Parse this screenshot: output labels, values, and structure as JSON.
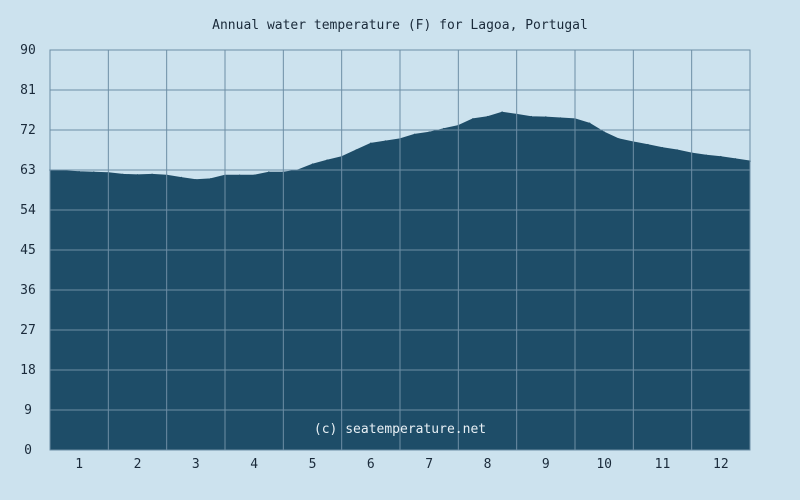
{
  "chart_data": {
    "type": "area",
    "title": "Annual water temperature (F) for Lagoa, Portugal",
    "xlabel": "",
    "ylabel": "",
    "ylim": [
      0,
      90
    ],
    "yticks": [
      "0",
      "9",
      "18",
      "27",
      "36",
      "45",
      "54",
      "63",
      "72",
      "81",
      "90"
    ],
    "xticks": [
      "1",
      "2",
      "3",
      "4",
      "5",
      "6",
      "7",
      "8",
      "9",
      "10",
      "11",
      "12"
    ],
    "x": [
      0.5,
      0.75,
      1.0,
      1.25,
      1.5,
      1.75,
      2.0,
      2.25,
      2.5,
      2.75,
      3.0,
      3.25,
      3.5,
      3.75,
      4.0,
      4.25,
      4.5,
      4.75,
      5.0,
      5.25,
      5.5,
      5.75,
      6.0,
      6.25,
      6.5,
      6.75,
      7.0,
      7.25,
      7.5,
      7.75,
      8.0,
      8.25,
      8.5,
      8.75,
      9.0,
      9.25,
      9.5,
      9.75,
      10.0,
      10.25,
      10.5,
      10.75,
      11.0,
      11.25,
      11.5,
      11.75,
      12.0,
      12.25,
      12.5
    ],
    "values": [
      63.0,
      62.8,
      62.6,
      62.5,
      62.4,
      62.0,
      61.9,
      62.0,
      61.8,
      61.3,
      60.8,
      61.0,
      61.8,
      61.8,
      61.8,
      62.5,
      62.5,
      63.0,
      64.3,
      65.2,
      66.0,
      67.5,
      69.0,
      69.5,
      70.0,
      71.0,
      71.5,
      72.3,
      73.0,
      74.5,
      75.0,
      76.0,
      75.5,
      75.0,
      74.9,
      74.7,
      74.5,
      73.5,
      71.5,
      70.0,
      69.3,
      68.7,
      68.0,
      67.5,
      66.8,
      66.3,
      66.0,
      65.5,
      65.0
    ],
    "grid": true,
    "watermark": "(c) seatemperature.net",
    "colors": {
      "background": "#cce2ee",
      "fill": "#1e4d68",
      "grid": "#6d8ea5",
      "text": "#1a2a3a"
    }
  }
}
